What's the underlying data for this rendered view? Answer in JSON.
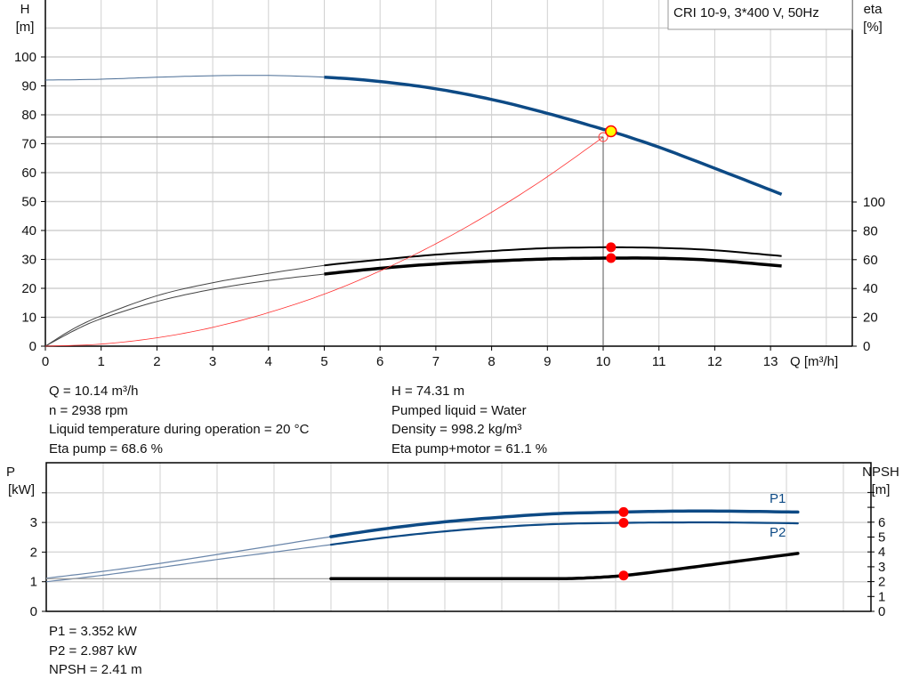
{
  "chart_data": [
    {
      "type": "line",
      "legend_box": "CRI 10-9, 3*400 V, 50Hz",
      "xlabel": "Q [m³/h]",
      "ylabel_left": [
        "H",
        "[m]"
      ],
      "ylabel_right": [
        "eta",
        "[%]"
      ],
      "xlim": [
        0,
        14
      ],
      "x_ticks": [
        "0",
        "1",
        "2",
        "3",
        "4",
        "5",
        "6",
        "7",
        "8",
        "9",
        "10",
        "11",
        "12",
        "13"
      ],
      "ylim_left": [
        0,
        120
      ],
      "y_ticks_left": [
        "0",
        "10",
        "20",
        "30",
        "40",
        "50",
        "60",
        "70",
        "80",
        "90",
        "100"
      ],
      "ylim_right": [
        0,
        200
      ],
      "y_ticks_right": [
        "0",
        "20",
        "40",
        "60",
        "80",
        "100"
      ],
      "grid": true,
      "series": [
        {
          "id": "head",
          "axis": "left",
          "color": "#0d4a85",
          "x": [
            0,
            1,
            2,
            3,
            4,
            5,
            6,
            7,
            8,
            9,
            10,
            10.14,
            11,
            12,
            13.2
          ],
          "y": [
            92,
            92.3,
            93,
            93.5,
            93.6,
            93,
            91.5,
            89,
            85.3,
            80.5,
            75,
            74.31,
            68.8,
            61.5,
            52.5
          ]
        },
        {
          "id": "eta-pump",
          "axis": "right",
          "color": "#000000",
          "x": [
            0,
            0.5,
            1,
            2,
            3,
            4,
            5,
            6,
            7,
            8,
            9,
            10,
            10.14,
            11,
            12,
            13.2
          ],
          "y": [
            0,
            12,
            21,
            35,
            44,
            50.5,
            56,
            60,
            63.5,
            66,
            68,
            68.6,
            68.6,
            68.2,
            66.5,
            62.5
          ]
        },
        {
          "id": "eta-pump-motor",
          "axis": "right",
          "color": "#000000",
          "x": [
            0,
            0.5,
            1,
            2,
            3,
            4,
            5,
            6,
            7,
            8,
            9,
            10,
            10.14,
            11,
            12,
            13.2
          ],
          "y": [
            0,
            10.5,
            19,
            31,
            39.5,
            45.5,
            50,
            54,
            57,
            59,
            60.5,
            61.1,
            61.1,
            61,
            59.5,
            55.6
          ]
        },
        {
          "id": "system-curve",
          "axis": "left",
          "color": "#ff3030",
          "x": [
            0,
            1,
            2,
            3,
            4,
            5,
            6,
            7,
            8,
            9,
            10
          ],
          "y": [
            0,
            0.72,
            2.9,
            6.5,
            11.6,
            18,
            26,
            35.4,
            46.3,
            58.6,
            72.3
          ]
        }
      ],
      "duty_point": {
        "Q": 10.14,
        "H": 74.31,
        "eta_pump": 68.6,
        "eta_pump_motor": 61.1
      },
      "requested_point": {
        "Q": 10,
        "H": 72.3
      },
      "colors": {
        "head": "#0d4a85",
        "marker": "#ff0000",
        "duty_fill": "#ffff00",
        "grid": "#d0d0d0"
      }
    },
    {
      "type": "line",
      "ylabel_left": [
        "P",
        "[kW]"
      ],
      "ylabel_right": [
        "NPSH",
        "[m]"
      ],
      "xlim": [
        0,
        14.5
      ],
      "ylim_left": [
        0,
        5
      ],
      "y_ticks_left": [
        "0",
        "1",
        "2",
        "3"
      ],
      "ylim_right": [
        0,
        10
      ],
      "y_ticks_right": [
        "0",
        "1",
        "2",
        "3",
        "4",
        "5",
        "6"
      ],
      "grid": true,
      "series": [
        {
          "id": "P1",
          "name": "P1",
          "axis": "left",
          "color": "#0d4a85",
          "x": [
            0,
            1,
            2,
            3,
            4,
            5,
            6,
            7,
            8,
            9,
            10.14,
            11,
            12,
            13.2
          ],
          "y": [
            1.12,
            1.35,
            1.62,
            1.92,
            2.22,
            2.52,
            2.8,
            3.02,
            3.18,
            3.3,
            3.352,
            3.38,
            3.38,
            3.35
          ]
        },
        {
          "id": "P2",
          "name": "P2",
          "axis": "left",
          "color": "#0d4a85",
          "x": [
            0,
            1,
            2,
            3,
            4,
            5,
            6,
            7,
            8,
            9,
            10.14,
            11,
            12,
            13.2
          ],
          "y": [
            1.0,
            1.22,
            1.48,
            1.75,
            2.0,
            2.25,
            2.5,
            2.7,
            2.85,
            2.95,
            2.987,
            3.0,
            3.0,
            2.97
          ]
        },
        {
          "id": "NPSH",
          "axis": "right",
          "color": "#000000",
          "x": [
            0,
            5,
            8,
            9,
            9.5,
            10.14,
            11,
            12,
            13.2
          ],
          "y": [
            2.2,
            2.2,
            2.2,
            2.2,
            2.25,
            2.41,
            2.8,
            3.3,
            3.9
          ]
        }
      ],
      "duty_point": {
        "Q": 10.14,
        "P1": 3.352,
        "P2": 2.987,
        "NPSH": 2.41
      }
    }
  ],
  "info_top_left": [
    "Q = 10.14 m³/h",
    "n = 2938 rpm",
    "Liquid temperature during operation = 20 °C",
    "Eta pump = 68.6 %"
  ],
  "info_top_right": [
    "H = 74.31 m",
    "Pumped liquid = Water",
    "Density = 998.2 kg/m³",
    "Eta pump+motor = 61.1 %"
  ],
  "info_bottom": [
    "P1 = 3.352 kW",
    "P2 = 2.987 kW",
    "NPSH = 2.41 m"
  ]
}
